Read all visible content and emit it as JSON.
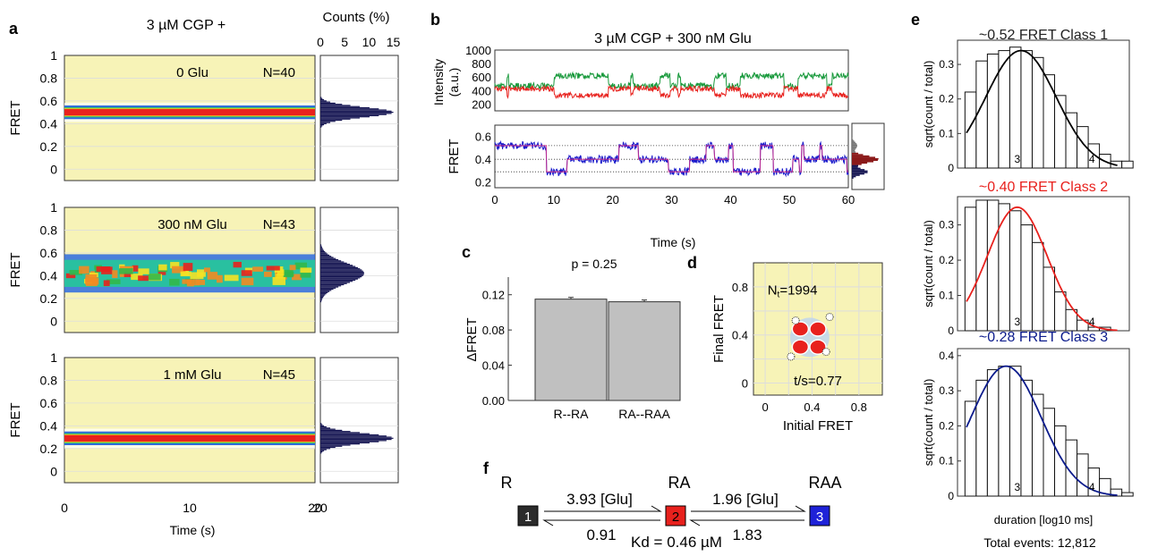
{
  "panels": {
    "a": "a",
    "b": "b",
    "c": "c",
    "d": "d",
    "e": "e",
    "f": "f"
  },
  "panel_a": {
    "title": "3 µM CGP +",
    "hist_title": "Counts (%)",
    "hist_ticks": [
      "0",
      "5",
      "10",
      "15"
    ],
    "ylabel": "FRET",
    "xlabel": "Time (s)",
    "xticks": [
      "0",
      "10",
      "20"
    ],
    "yticks": [
      "0",
      "0.2",
      "0.4",
      "0.6",
      "0.8",
      "1"
    ],
    "rows": [
      {
        "condition": "0 Glu",
        "n": "N=40",
        "center": 0.5
      },
      {
        "condition": "300 nM Glu",
        "n": "N=43",
        "center": 0.42
      },
      {
        "condition": "1 mM Glu",
        "n": "N=45",
        "center": 0.29
      }
    ]
  },
  "panel_b": {
    "title": "3 µM CGP + 300 nM Glu",
    "intensity_label": "Intensity",
    "intensity_unit": "(a.u.)",
    "intensity_ticks": [
      "200",
      "400",
      "600",
      "800",
      "1000"
    ],
    "fret_label": "FRET",
    "fret_ticks": [
      "0.2",
      "0.4",
      "0.6"
    ],
    "xlabel": "Time (s)",
    "xticks": [
      "0",
      "10",
      "20",
      "30",
      "40",
      "50",
      "60"
    ]
  },
  "chart_data": [
    {
      "type": "bar",
      "panel": "c",
      "title": "p = 0.25",
      "categories": [
        "R--RA",
        "RA--RAA"
      ],
      "values": [
        0.115,
        0.112
      ],
      "errors": [
        0.002,
        0.002
      ],
      "ylabel": "ΔFRET",
      "yticks": [
        "0.00",
        "0.04",
        "0.08",
        "0.12"
      ],
      "ylim": [
        0,
        0.14
      ],
      "colors": {
        "bar": "#c0c0c0"
      }
    },
    {
      "type": "heatmap",
      "panel": "d",
      "xlabel": "Initial FRET",
      "ylabel": "Final FRET",
      "xticks": [
        "0",
        "0.4",
        "0.8"
      ],
      "yticks": [
        "0",
        "0.4",
        "0.8"
      ],
      "nt_main": "N",
      "nt_sub": "t",
      "nt_value": "=1994",
      "ts": "t/s=0.77",
      "peaks": [
        [
          0.3,
          0.45
        ],
        [
          0.45,
          0.3
        ],
        [
          0.45,
          0.45
        ],
        [
          0.3,
          0.3
        ]
      ]
    },
    {
      "type": "bar",
      "panel": "e",
      "title": "~0.52 FRET Class 1",
      "ylabel": "sqrt(count / total)",
      "xticks": [
        "3",
        "4"
      ],
      "yticks": [
        "0",
        "0.1",
        "0.2",
        "0.3"
      ],
      "xlim": [
        2.2,
        4.5
      ],
      "ylim": [
        0,
        0.37
      ],
      "x": [
        2.3,
        2.45,
        2.6,
        2.75,
        2.9,
        3.05,
        3.2,
        3.35,
        3.5,
        3.65,
        3.8,
        3.95,
        4.1,
        4.25,
        4.4
      ],
      "values": [
        0.22,
        0.31,
        0.33,
        0.34,
        0.35,
        0.34,
        0.32,
        0.27,
        0.21,
        0.16,
        0.12,
        0.07,
        0.04,
        0.02,
        0.02
      ],
      "fit_mu": 3.05,
      "fit_sigma": 0.47,
      "fit_amp": 0.34,
      "color": "#000000"
    },
    {
      "type": "bar",
      "panel": "e",
      "title": "~0.40 FRET Class 2",
      "ylabel": "sqrt(count / total)",
      "xticks": [
        "3",
        "4"
      ],
      "yticks": [
        "0",
        "0.1",
        "0.2",
        "0.3"
      ],
      "xlim": [
        2.2,
        4.5
      ],
      "ylim": [
        0,
        0.38
      ],
      "x": [
        2.3,
        2.45,
        2.6,
        2.75,
        2.9,
        3.05,
        3.2,
        3.35,
        3.5,
        3.65,
        3.8,
        3.95,
        4.1,
        4.25,
        4.4
      ],
      "values": [
        0.35,
        0.37,
        0.37,
        0.36,
        0.34,
        0.3,
        0.25,
        0.18,
        0.11,
        0.06,
        0.03,
        0.01,
        0.01,
        0,
        0
      ],
      "fit_mu": 3.0,
      "fit_sigma": 0.4,
      "fit_amp": 0.35,
      "color": "#e8211d"
    },
    {
      "type": "bar",
      "panel": "e",
      "title": "~0.28 FRET Class 3",
      "ylabel": "sqrt(count / total)",
      "xlabel": "duration [log10 ms]",
      "xticks": [
        "3",
        "4"
      ],
      "yticks": [
        "0",
        "0.1",
        "0.2",
        "0.3",
        "0.4"
      ],
      "xlim": [
        2.2,
        4.5
      ],
      "ylim": [
        0,
        0.42
      ],
      "x": [
        2.3,
        2.45,
        2.6,
        2.75,
        2.9,
        3.05,
        3.2,
        3.35,
        3.5,
        3.65,
        3.8,
        3.95,
        4.1,
        4.25,
        4.4
      ],
      "values": [
        0.27,
        0.33,
        0.36,
        0.37,
        0.37,
        0.33,
        0.29,
        0.25,
        0.2,
        0.16,
        0.12,
        0.08,
        0.05,
        0.02,
        0.01
      ],
      "fit_mu": 2.85,
      "fit_sigma": 0.47,
      "fit_amp": 0.37,
      "color": "#0b1b8c"
    }
  ],
  "panel_e_total": "Total events: 12,812",
  "panel_f": {
    "states": [
      {
        "name": "R",
        "index": "1",
        "color": "#2b2b2b"
      },
      {
        "name": "RA",
        "index": "2",
        "color": "#e8211d"
      },
      {
        "name": "RAA",
        "index": "3",
        "color": "#1e22d8"
      }
    ],
    "rates_forward": [
      "3.93 [Glu]",
      "1.96 [Glu]"
    ],
    "rates_backward": [
      "0.91",
      "1.83"
    ],
    "kd": "Kd = 0.46 µM"
  },
  "colors": {
    "background": "#f7f3b7",
    "trace_green": "#1a9a3d",
    "trace_red": "#e8211d",
    "trace_blue": "#1a1acb",
    "trace_magenta": "#d12d8a"
  }
}
